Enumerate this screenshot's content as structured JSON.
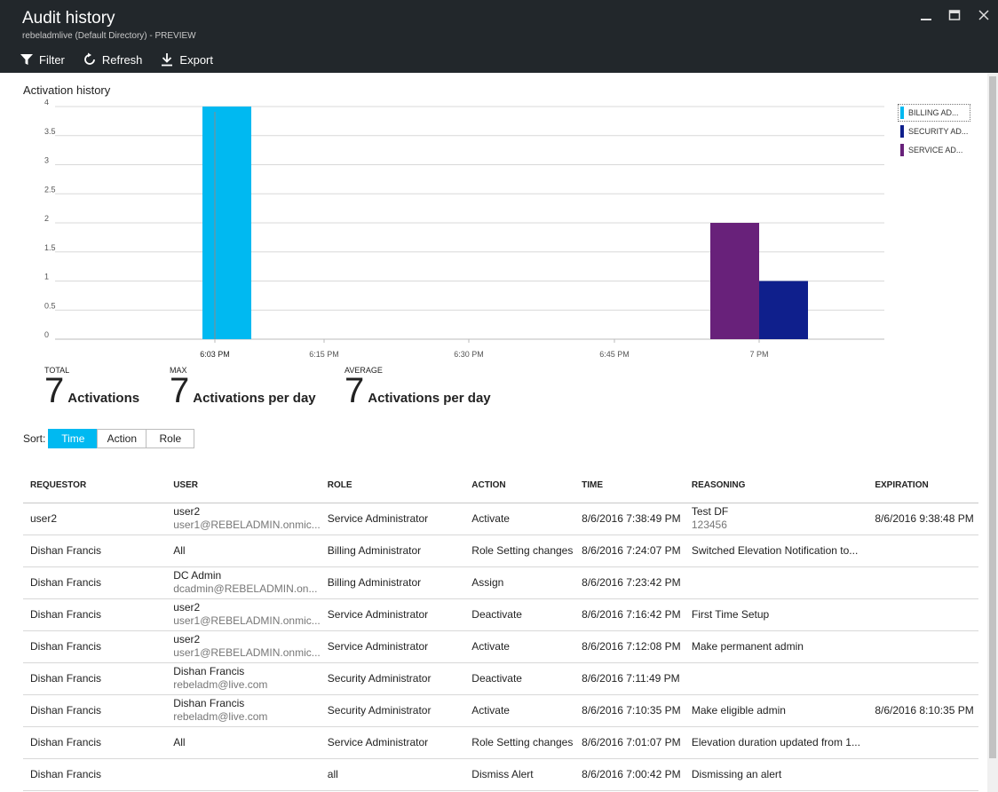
{
  "header": {
    "title": "Audit history",
    "subtitle": "rebeladmlive (Default Directory) - PREVIEW"
  },
  "toolbar": {
    "filter_label": "Filter",
    "refresh_label": "Refresh",
    "export_label": "Export"
  },
  "section": {
    "title": "Activation history"
  },
  "chart_data": {
    "type": "bar",
    "y_ticks": [
      "0",
      "0.5",
      "1",
      "1.5",
      "2",
      "2.5",
      "3",
      "3.5",
      "4"
    ],
    "ylim": [
      0,
      4
    ],
    "x_tick_labels": [
      "6:03 PM",
      "6:15 PM",
      "6:30 PM",
      "6:45 PM",
      "7 PM"
    ],
    "grid": true,
    "legend_position": "right",
    "series": [
      {
        "name": "BILLING AD...",
        "color": "#00b9f1",
        "points": [
          {
            "x": "6:03 PM",
            "y": 4
          }
        ]
      },
      {
        "name": "SECURITY AD...",
        "color": "#0f1f8c",
        "points": [
          {
            "x": "7 PM",
            "y": 1
          }
        ]
      },
      {
        "name": "SERVICE AD...",
        "color": "#68217a",
        "points": [
          {
            "x": "7 PM",
            "y": 2
          }
        ]
      }
    ]
  },
  "stats": {
    "total": {
      "label": "TOTAL",
      "value": "7",
      "unit": "Activations"
    },
    "max": {
      "label": "MAX",
      "value": "7",
      "unit": "Activations per day"
    },
    "average": {
      "label": "AVERAGE",
      "value": "7",
      "unit": "Activations per day"
    }
  },
  "sort": {
    "label": "Sort:",
    "options": [
      "Time",
      "Action",
      "Role"
    ],
    "selected": "Time"
  },
  "table": {
    "columns": [
      "REQUESTOR",
      "USER",
      "ROLE",
      "ACTION",
      "TIME",
      "REASONING",
      "EXPIRATION"
    ],
    "rows": [
      {
        "requestor": "user2",
        "user": "user2",
        "user_sub": "user1@REBELADMIN.onmic...",
        "role": "Service Administrator",
        "action": "Activate",
        "time": "8/6/2016 7:38:49 PM",
        "reasoning": "Test DF",
        "reasoning_sub": "123456",
        "expiration": "8/6/2016 9:38:48 PM"
      },
      {
        "requestor": "Dishan Francis",
        "user": "All",
        "user_sub": "",
        "role": "Billing Administrator",
        "action": "Role Setting changes",
        "time": "8/6/2016 7:24:07 PM",
        "reasoning": "Switched Elevation Notification to...",
        "reasoning_sub": "",
        "expiration": ""
      },
      {
        "requestor": "Dishan Francis",
        "user": "DC Admin",
        "user_sub": "dcadmin@REBELADMIN.on...",
        "role": "Billing Administrator",
        "action": "Assign",
        "time": "8/6/2016 7:23:42 PM",
        "reasoning": "",
        "reasoning_sub": "",
        "expiration": ""
      },
      {
        "requestor": "Dishan Francis",
        "user": "user2",
        "user_sub": "user1@REBELADMIN.onmic...",
        "role": "Service Administrator",
        "action": "Deactivate",
        "time": "8/6/2016 7:16:42 PM",
        "reasoning": "First Time Setup",
        "reasoning_sub": "",
        "expiration": ""
      },
      {
        "requestor": "Dishan Francis",
        "user": "user2",
        "user_sub": "user1@REBELADMIN.onmic...",
        "role": "Service Administrator",
        "action": "Activate",
        "time": "8/6/2016 7:12:08 PM",
        "reasoning": "Make permanent admin",
        "reasoning_sub": "",
        "expiration": ""
      },
      {
        "requestor": "Dishan Francis",
        "user": "Dishan Francis",
        "user_sub": "rebeladm@live.com",
        "role": "Security Administrator",
        "action": "Deactivate",
        "time": "8/6/2016 7:11:49 PM",
        "reasoning": "",
        "reasoning_sub": "",
        "expiration": ""
      },
      {
        "requestor": "Dishan Francis",
        "user": "Dishan Francis",
        "user_sub": "rebeladm@live.com",
        "role": "Security Administrator",
        "action": "Activate",
        "time": "8/6/2016 7:10:35 PM",
        "reasoning": "Make eligible admin",
        "reasoning_sub": "",
        "expiration": "8/6/2016 8:10:35 PM"
      },
      {
        "requestor": "Dishan Francis",
        "user": "All",
        "user_sub": "",
        "role": "Service Administrator",
        "action": "Role Setting changes",
        "time": "8/6/2016 7:01:07 PM",
        "reasoning": "Elevation duration updated from 1...",
        "reasoning_sub": "",
        "expiration": ""
      },
      {
        "requestor": "Dishan Francis",
        "user": "",
        "user_sub": "",
        "role": "all",
        "action": "Dismiss Alert",
        "time": "8/6/2016 7:00:42 PM",
        "reasoning": "Dismissing an alert",
        "reasoning_sub": "",
        "expiration": ""
      }
    ]
  }
}
